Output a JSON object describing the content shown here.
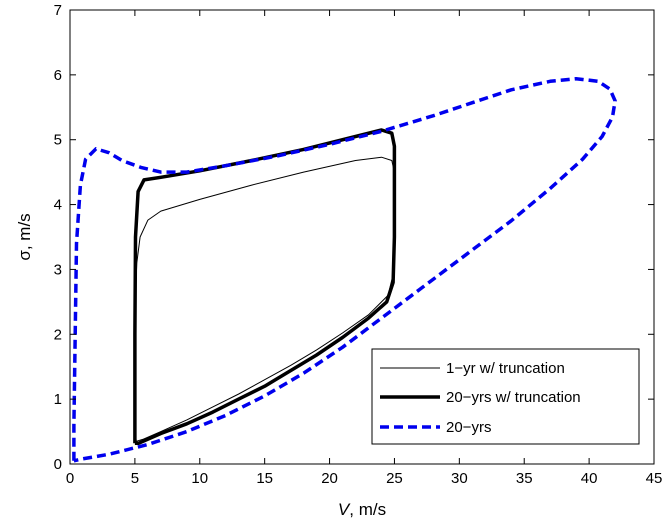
{
  "chart_data": {
    "type": "line",
    "title": "",
    "xlabel_italic": "V",
    "xlabel_rest": ", m/s",
    "ylabel": "σ, m/s",
    "xlim": [
      0,
      45
    ],
    "ylim": [
      0,
      7
    ],
    "xticks": [
      0,
      5,
      10,
      15,
      20,
      25,
      30,
      35,
      40,
      45
    ],
    "yticks": [
      0,
      1,
      2,
      3,
      4,
      5,
      6,
      7
    ],
    "grid": false,
    "legend_position": "lower-right",
    "series": [
      {
        "name": "1−yr w/ truncation",
        "color": "#000000",
        "style": "solid",
        "weight": "thin",
        "points": [
          [
            5.1,
            0.35
          ],
          [
            5.6,
            0.38
          ],
          [
            7,
            0.5
          ],
          [
            9,
            0.68
          ],
          [
            11,
            0.88
          ],
          [
            13,
            1.08
          ],
          [
            15,
            1.3
          ],
          [
            17,
            1.52
          ],
          [
            19,
            1.76
          ],
          [
            21,
            2.02
          ],
          [
            23,
            2.3
          ],
          [
            24.5,
            2.6
          ],
          [
            25,
            3.0
          ],
          [
            25,
            4.5
          ],
          [
            24.8,
            4.68
          ],
          [
            24,
            4.73
          ],
          [
            22,
            4.68
          ],
          [
            18,
            4.5
          ],
          [
            14,
            4.3
          ],
          [
            10,
            4.08
          ],
          [
            7,
            3.9
          ],
          [
            6,
            3.76
          ],
          [
            5.4,
            3.5
          ],
          [
            5.15,
            3.1
          ],
          [
            5.05,
            2.6
          ],
          [
            5.05,
            0.5
          ],
          [
            5.1,
            0.35
          ]
        ]
      },
      {
        "name": "20−yrs w/ truncation",
        "color": "#000000",
        "style": "solid",
        "weight": "thick",
        "points": [
          [
            5,
            0.32
          ],
          [
            5.3,
            0.32
          ],
          [
            7,
            0.47
          ],
          [
            9,
            0.62
          ],
          [
            11,
            0.8
          ],
          [
            13,
            1.0
          ],
          [
            15,
            1.2
          ],
          [
            17,
            1.44
          ],
          [
            19,
            1.68
          ],
          [
            21,
            1.95
          ],
          [
            23,
            2.25
          ],
          [
            24.4,
            2.5
          ],
          [
            24.9,
            2.8
          ],
          [
            25,
            3.5
          ],
          [
            25,
            4.9
          ],
          [
            24.8,
            5.1
          ],
          [
            24,
            5.15
          ],
          [
            22,
            5.05
          ],
          [
            18,
            4.85
          ],
          [
            14,
            4.68
          ],
          [
            10,
            4.52
          ],
          [
            7,
            4.42
          ],
          [
            5.7,
            4.38
          ],
          [
            5.25,
            4.2
          ],
          [
            5.05,
            3.5
          ],
          [
            5,
            2.0
          ],
          [
            5,
            0.5
          ],
          [
            5,
            0.32
          ]
        ]
      },
      {
        "name": "20−yrs",
        "color": "#0000ee",
        "style": "dashed",
        "weight": "thick",
        "points": [
          [
            0.3,
            0.05
          ],
          [
            0.3,
            0.6
          ],
          [
            0.4,
            2.0
          ],
          [
            0.5,
            3.4
          ],
          [
            0.8,
            4.3
          ],
          [
            1.2,
            4.7
          ],
          [
            2,
            4.86
          ],
          [
            3,
            4.8
          ],
          [
            4,
            4.68
          ],
          [
            5.5,
            4.57
          ],
          [
            7,
            4.5
          ],
          [
            9,
            4.5
          ],
          [
            12,
            4.6
          ],
          [
            16,
            4.75
          ],
          [
            20,
            4.93
          ],
          [
            24,
            5.13
          ],
          [
            28,
            5.37
          ],
          [
            31,
            5.57
          ],
          [
            34,
            5.77
          ],
          [
            37,
            5.9
          ],
          [
            39,
            5.94
          ],
          [
            40.7,
            5.9
          ],
          [
            41.6,
            5.78
          ],
          [
            42,
            5.6
          ],
          [
            41.8,
            5.35
          ],
          [
            41,
            5.05
          ],
          [
            39.5,
            4.7
          ],
          [
            37,
            4.25
          ],
          [
            34,
            3.75
          ],
          [
            30,
            3.15
          ],
          [
            27,
            2.7
          ],
          [
            24,
            2.25
          ],
          [
            21,
            1.8
          ],
          [
            18,
            1.4
          ],
          [
            15,
            1.05
          ],
          [
            12,
            0.75
          ],
          [
            9,
            0.5
          ],
          [
            6,
            0.3
          ],
          [
            3,
            0.15
          ],
          [
            1,
            0.08
          ],
          [
            0.3,
            0.05
          ]
        ]
      }
    ]
  }
}
